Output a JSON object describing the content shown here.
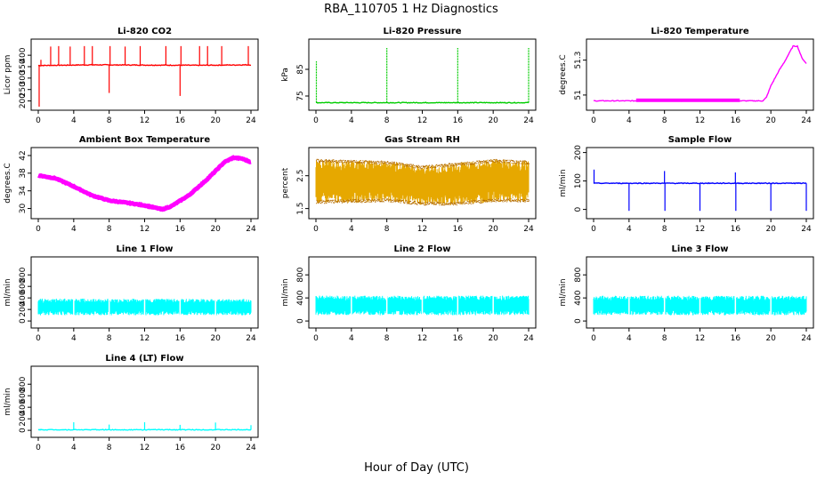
{
  "figure": {
    "title": "RBA_110705  1 Hz Diagnostics",
    "xlabel": "Hour of Day (UTC)"
  },
  "chart_data": [
    {
      "type": "line",
      "title": "Li-820 CO2",
      "ylabel": "Licor ppm",
      "color": "#ff0000",
      "xlim": [
        0,
        24
      ],
      "ylim": [
        175,
        455
      ],
      "xticks": [
        0,
        4,
        8,
        12,
        16,
        20,
        24
      ],
      "yticks": [
        200,
        250,
        300,
        350,
        400
      ],
      "baseline": [
        [
          0,
          355
        ],
        [
          6,
          358
        ],
        [
          12,
          357
        ],
        [
          18,
          356
        ],
        [
          24,
          358
        ]
      ],
      "spikes": [
        [
          0.1,
          175
        ],
        [
          0.3,
          380
        ],
        [
          1.4,
          438
        ],
        [
          2.3,
          440
        ],
        [
          3.6,
          438
        ],
        [
          5.2,
          440
        ],
        [
          6.1,
          440
        ],
        [
          8.0,
          235
        ],
        [
          8.1,
          440
        ],
        [
          9.8,
          438
        ],
        [
          11.5,
          440
        ],
        [
          14.4,
          440
        ],
        [
          16.0,
          222
        ],
        [
          16.1,
          440
        ],
        [
          18.2,
          440
        ],
        [
          19.1,
          440
        ],
        [
          20.7,
          440
        ],
        [
          23.7,
          440
        ]
      ]
    },
    {
      "type": "line",
      "title": "Li-820 Pressure",
      "ylabel": "kPa",
      "color": "#00cc00",
      "xlim": [
        0,
        24
      ],
      "ylim": [
        71,
        95
      ],
      "xticks": [
        0,
        4,
        8,
        12,
        16,
        20,
        24
      ],
      "yticks": [
        75,
        85
      ],
      "baseline": [
        [
          0,
          72.5
        ],
        [
          24,
          72.5
        ]
      ],
      "spikes": [
        [
          0.05,
          88
        ],
        [
          8.0,
          93
        ],
        [
          16.0,
          93
        ],
        [
          24.0,
          93
        ]
      ]
    },
    {
      "type": "line",
      "title": "Li-820 Temperature",
      "ylabel": "degrees.C",
      "color": "#ff00ff",
      "xlim": [
        0,
        24
      ],
      "ylim": [
        50.9,
        51.45
      ],
      "xticks": [
        0,
        4,
        8,
        12,
        16,
        20,
        24
      ],
      "yticks": [
        51.0,
        51.3
      ],
      "baseline": [
        [
          0,
          50.95
        ],
        [
          19.1,
          50.95
        ],
        [
          19.5,
          50.98
        ],
        [
          20.0,
          51.08
        ],
        [
          20.5,
          51.15
        ],
        [
          21.0,
          51.22
        ],
        [
          21.5,
          51.28
        ],
        [
          22.0,
          51.35
        ],
        [
          22.5,
          51.42
        ],
        [
          23.0,
          51.42
        ],
        [
          23.5,
          51.32
        ],
        [
          24,
          51.27
        ]
      ],
      "band": [
        4.8,
        16.5,
        50.94,
        50.97
      ]
    },
    {
      "type": "line",
      "title": "Ambient Box Temperature",
      "ylabel": "degrees.C",
      "color": "#ff00ff",
      "xlim": [
        0,
        24
      ],
      "ylim": [
        28.5,
        43
      ],
      "xticks": [
        0,
        4,
        8,
        12,
        16,
        20,
        24
      ],
      "yticks": [
        30,
        34,
        38,
        42
      ],
      "baseline": [
        [
          0,
          37.5
        ],
        [
          2,
          36.8
        ],
        [
          4,
          35
        ],
        [
          6,
          33
        ],
        [
          8,
          31.8
        ],
        [
          10,
          31.3
        ],
        [
          12,
          30.7
        ],
        [
          14,
          29.8
        ],
        [
          15,
          30.5
        ],
        [
          17,
          33
        ],
        [
          19,
          36.5
        ],
        [
          21,
          40.5
        ],
        [
          22,
          41.5
        ],
        [
          23,
          41.3
        ],
        [
          24,
          40.5
        ]
      ]
    },
    {
      "type": "line",
      "title": "Gas Stream RH",
      "ylabel": "percent",
      "color": "#e6a800",
      "xlim": [
        0,
        24
      ],
      "ylim": [
        1.3,
        3.25
      ],
      "xticks": [
        0,
        4,
        8,
        12,
        16,
        20,
        24
      ],
      "yticks": [
        1.5,
        2.5
      ],
      "envelope": [
        [
          0,
          1.65,
          3.0
        ],
        [
          8,
          1.7,
          2.95
        ],
        [
          12,
          1.6,
          2.8
        ],
        [
          16,
          1.6,
          2.9
        ],
        [
          20,
          1.7,
          3.0
        ],
        [
          24,
          1.7,
          2.95
        ]
      ]
    },
    {
      "type": "line",
      "title": "Sample Flow",
      "ylabel": "ml/min",
      "color": "#0000ff",
      "xlim": [
        0,
        24
      ],
      "ylim": [
        -20,
        205
      ],
      "xticks": [
        0,
        4,
        8,
        12,
        16,
        20,
        24
      ],
      "yticks": [
        0,
        100,
        200
      ],
      "baseline": [
        [
          0,
          92
        ],
        [
          24,
          92
        ]
      ],
      "spikes": [
        [
          0.05,
          140
        ],
        [
          4.0,
          -5
        ],
        [
          8.0,
          135
        ],
        [
          8.05,
          -5
        ],
        [
          12.0,
          -5
        ],
        [
          16.0,
          130
        ],
        [
          16.05,
          -5
        ],
        [
          20.0,
          -5
        ],
        [
          24.0,
          -5
        ]
      ]
    },
    {
      "type": "line",
      "title": "Line 1 Flow",
      "ylabel": "ml/min",
      "color": "#00ffff",
      "xlim": [
        0,
        24
      ],
      "ylim": [
        -60,
        1050
      ],
      "xticks": [
        0,
        4,
        8,
        12,
        16,
        20,
        24
      ],
      "yticks": [
        0,
        200,
        400,
        600,
        800
      ],
      "envelope": [
        [
          0,
          100,
          390
        ],
        [
          24,
          100,
          380
        ]
      ]
    },
    {
      "type": "line",
      "title": "Line 2 Flow",
      "ylabel": "ml/min",
      "color": "#00ffff",
      "xlim": [
        0,
        24
      ],
      "ylim": [
        -60,
        1050
      ],
      "xticks": [
        0,
        4,
        8,
        12,
        16,
        20,
        24
      ],
      "yticks": [
        0,
        400,
        800
      ],
      "envelope": [
        [
          0,
          100,
          440
        ],
        [
          24,
          100,
          440
        ]
      ]
    },
    {
      "type": "line",
      "title": "Line 3 Flow",
      "ylabel": "ml/min",
      "color": "#00ffff",
      "xlim": [
        0,
        24
      ],
      "ylim": [
        -60,
        1050
      ],
      "xticks": [
        0,
        4,
        8,
        12,
        16,
        20,
        24
      ],
      "yticks": [
        0,
        400,
        800
      ],
      "envelope": [
        [
          0,
          100,
          440
        ],
        [
          24,
          100,
          440
        ]
      ]
    },
    {
      "type": "line",
      "title": "Line 4 (LT) Flow",
      "ylabel": "ml/min",
      "color": "#00ffff",
      "xlim": [
        0,
        24
      ],
      "ylim": [
        -60,
        1050
      ],
      "xticks": [
        0,
        4,
        8,
        12,
        16,
        20,
        24
      ],
      "yticks": [
        0,
        200,
        400,
        600,
        800
      ],
      "baseline": [
        [
          0,
          10
        ],
        [
          24,
          10
        ]
      ],
      "spikes": [
        [
          4.0,
          140
        ],
        [
          8.0,
          100
        ],
        [
          12.0,
          140
        ],
        [
          16.0,
          95
        ],
        [
          20.0,
          135
        ],
        [
          24.0,
          90
        ]
      ]
    }
  ]
}
